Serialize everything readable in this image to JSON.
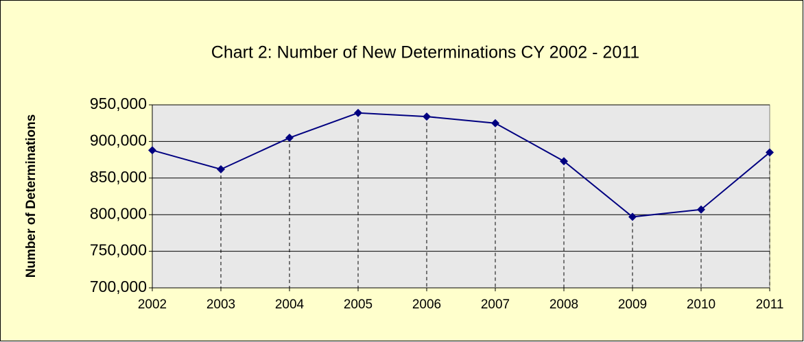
{
  "chart_data": {
    "type": "line",
    "title": "Chart 2: Number of New Determinations CY 2002 - 2011",
    "y_label": "Number of Determinations",
    "x": [
      2002,
      2003,
      2004,
      2005,
      2006,
      2007,
      2008,
      2009,
      2010,
      2011
    ],
    "xlim": [
      2002,
      2011
    ],
    "xticks": [
      2002,
      2003,
      2004,
      2005,
      2006,
      2007,
      2008,
      2009,
      2010,
      2011
    ],
    "series": [
      {
        "name": "New Determinations",
        "color": "#000080",
        "values": [
          888000,
          862000,
          905000,
          939000,
          934000,
          925000,
          873000,
          797000,
          807000,
          885000
        ]
      }
    ],
    "ylim": [
      700000,
      950000
    ],
    "yticks": [
      {
        "value": 700000,
        "label": "700,000"
      },
      {
        "value": 750000,
        "label": "750,000"
      },
      {
        "value": 800000,
        "label": "800,000"
      },
      {
        "value": 850000,
        "label": "850,000"
      },
      {
        "value": 900000,
        "label": "900,000"
      },
      {
        "value": 950000,
        "label": "950,000"
      }
    ],
    "grid": true,
    "drop_lines": true,
    "legend": false
  }
}
